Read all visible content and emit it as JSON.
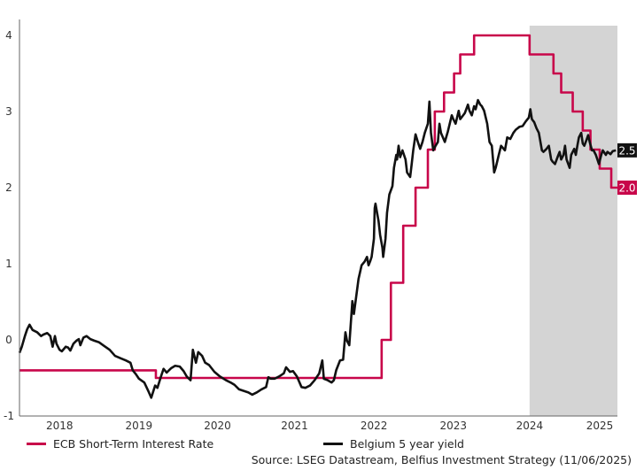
{
  "chart_data": {
    "type": "line",
    "title": "",
    "xlabel": "",
    "ylabel": "",
    "xlim": [
      2017.5,
      2025.26
    ],
    "ylim": [
      -1,
      4
    ],
    "x_ticks": [
      {
        "value": 2018.02,
        "label": "2018"
      },
      {
        "value": 2019.05,
        "label": "2019"
      },
      {
        "value": 2020.07,
        "label": "2020"
      },
      {
        "value": 2021.07,
        "label": "2021"
      },
      {
        "value": 2022.1,
        "label": "2022"
      },
      {
        "value": 2023.13,
        "label": "2023"
      },
      {
        "value": 2024.12,
        "label": "2024"
      },
      {
        "value": 2025.03,
        "label": "2025"
      }
    ],
    "y_ticks": [
      {
        "value": 4,
        "label": "4"
      },
      {
        "value": 3,
        "label": "3"
      },
      {
        "value": 2,
        "label": "2"
      },
      {
        "value": 1,
        "label": "1"
      },
      {
        "value": 0,
        "label": "0"
      },
      {
        "value": -1,
        "label": "-1"
      }
    ],
    "grid": false,
    "shaded_region": {
      "from": 2024.12,
      "to": 2025.26,
      "color": "#d4d4d4"
    },
    "legend_placement": "bottom",
    "series": [
      {
        "name": "ECB Short-Term Interest Rate",
        "color": "#c8064a",
        "step": true,
        "end_label": "2.0",
        "points": [
          [
            2017.5,
            -0.4
          ],
          [
            2019.27,
            -0.5
          ],
          [
            2022.2,
            0
          ],
          [
            2022.32,
            0.75
          ],
          [
            2022.48,
            1.5
          ],
          [
            2022.64,
            2.0
          ],
          [
            2022.8,
            2.5
          ],
          [
            2022.89,
            3.0
          ],
          [
            2023.01,
            3.25
          ],
          [
            2023.14,
            3.5
          ],
          [
            2023.22,
            3.75
          ],
          [
            2023.4,
            4.0
          ],
          [
            2024.12,
            3.75
          ],
          [
            2024.43,
            3.5
          ],
          [
            2024.53,
            3.25
          ],
          [
            2024.68,
            3.0
          ],
          [
            2024.81,
            2.75
          ],
          [
            2024.91,
            2.5
          ],
          [
            2025.03,
            2.25
          ],
          [
            2025.18,
            2.0
          ],
          [
            2025.26,
            2.0
          ]
        ]
      },
      {
        "name": "Belgium 5 year yield",
        "color": "#111111",
        "step": false,
        "end_label": "2.5",
        "points": [
          [
            2017.5,
            -0.17
          ],
          [
            2017.53,
            -0.09
          ],
          [
            2017.57,
            0.05
          ],
          [
            2017.6,
            0.14
          ],
          [
            2017.63,
            0.2
          ],
          [
            2017.67,
            0.13
          ],
          [
            2017.73,
            0.1
          ],
          [
            2017.78,
            0.05
          ],
          [
            2017.81,
            0.07
          ],
          [
            2017.86,
            0.09
          ],
          [
            2017.9,
            0.05
          ],
          [
            2017.93,
            -0.09
          ],
          [
            2017.96,
            0.05
          ],
          [
            2017.98,
            -0.05
          ],
          [
            2018.02,
            -0.13
          ],
          [
            2018.05,
            -0.15
          ],
          [
            2018.1,
            -0.09
          ],
          [
            2018.13,
            -0.1
          ],
          [
            2018.16,
            -0.14
          ],
          [
            2018.2,
            -0.05
          ],
          [
            2018.24,
            -0.01
          ],
          [
            2018.27,
            0.01
          ],
          [
            2018.29,
            -0.07
          ],
          [
            2018.33,
            0.03
          ],
          [
            2018.37,
            0.05
          ],
          [
            2018.42,
            0.01
          ],
          [
            2018.47,
            -0.01
          ],
          [
            2018.53,
            -0.03
          ],
          [
            2018.6,
            -0.08
          ],
          [
            2018.67,
            -0.13
          ],
          [
            2018.74,
            -0.21
          ],
          [
            2018.81,
            -0.24
          ],
          [
            2018.88,
            -0.27
          ],
          [
            2018.94,
            -0.3
          ],
          [
            2018.97,
            -0.4
          ],
          [
            2019.01,
            -0.45
          ],
          [
            2019.05,
            -0.51
          ],
          [
            2019.12,
            -0.56
          ],
          [
            2019.18,
            -0.69
          ],
          [
            2019.21,
            -0.76
          ],
          [
            2019.26,
            -0.6
          ],
          [
            2019.29,
            -0.63
          ],
          [
            2019.34,
            -0.47
          ],
          [
            2019.37,
            -0.38
          ],
          [
            2019.41,
            -0.43
          ],
          [
            2019.47,
            -0.37
          ],
          [
            2019.52,
            -0.34
          ],
          [
            2019.58,
            -0.35
          ],
          [
            2019.63,
            -0.41
          ],
          [
            2019.67,
            -0.48
          ],
          [
            2019.72,
            -0.53
          ],
          [
            2019.75,
            -0.13
          ],
          [
            2019.79,
            -0.3
          ],
          [
            2019.82,
            -0.16
          ],
          [
            2019.87,
            -0.21
          ],
          [
            2019.91,
            -0.3
          ],
          [
            2019.96,
            -0.33
          ],
          [
            2020.03,
            -0.42
          ],
          [
            2020.1,
            -0.48
          ],
          [
            2020.18,
            -0.53
          ],
          [
            2020.24,
            -0.56
          ],
          [
            2020.29,
            -0.59
          ],
          [
            2020.35,
            -0.65
          ],
          [
            2020.41,
            -0.67
          ],
          [
            2020.47,
            -0.69
          ],
          [
            2020.52,
            -0.72
          ],
          [
            2020.58,
            -0.69
          ],
          [
            2020.64,
            -0.65
          ],
          [
            2020.7,
            -0.62
          ],
          [
            2020.73,
            -0.49
          ],
          [
            2020.76,
            -0.51
          ],
          [
            2020.81,
            -0.51
          ],
          [
            2020.87,
            -0.48
          ],
          [
            2020.93,
            -0.44
          ],
          [
            2020.96,
            -0.36
          ],
          [
            2021.01,
            -0.42
          ],
          [
            2021.05,
            -0.41
          ],
          [
            2021.1,
            -0.48
          ],
          [
            2021.16,
            -0.62
          ],
          [
            2021.21,
            -0.63
          ],
          [
            2021.27,
            -0.6
          ],
          [
            2021.33,
            -0.53
          ],
          [
            2021.39,
            -0.44
          ],
          [
            2021.43,
            -0.27
          ],
          [
            2021.45,
            -0.51
          ],
          [
            2021.5,
            -0.53
          ],
          [
            2021.55,
            -0.56
          ],
          [
            2021.58,
            -0.53
          ],
          [
            2021.61,
            -0.4
          ],
          [
            2021.66,
            -0.27
          ],
          [
            2021.7,
            -0.26
          ],
          [
            2021.73,
            0.1
          ],
          [
            2021.75,
            -0.01
          ],
          [
            2021.78,
            -0.07
          ],
          [
            2021.82,
            0.51
          ],
          [
            2021.84,
            0.34
          ],
          [
            2021.87,
            0.57
          ],
          [
            2021.9,
            0.8
          ],
          [
            2021.94,
            0.98
          ],
          [
            2021.98,
            1.03
          ],
          [
            2022.01,
            1.09
          ],
          [
            2022.03,
            0.98
          ],
          [
            2022.05,
            1.03
          ],
          [
            2022.07,
            1.09
          ],
          [
            2022.1,
            1.33
          ],
          [
            2022.11,
            1.73
          ],
          [
            2022.12,
            1.79
          ],
          [
            2022.16,
            1.56
          ],
          [
            2022.18,
            1.38
          ],
          [
            2022.21,
            1.21
          ],
          [
            2022.22,
            1.09
          ],
          [
            2022.25,
            1.33
          ],
          [
            2022.27,
            1.67
          ],
          [
            2022.3,
            1.91
          ],
          [
            2022.34,
            2.02
          ],
          [
            2022.36,
            2.26
          ],
          [
            2022.39,
            2.43
          ],
          [
            2022.4,
            2.37
          ],
          [
            2022.42,
            2.55
          ],
          [
            2022.44,
            2.4
          ],
          [
            2022.47,
            2.49
          ],
          [
            2022.49,
            2.43
          ],
          [
            2022.51,
            2.37
          ],
          [
            2022.53,
            2.2
          ],
          [
            2022.57,
            2.14
          ],
          [
            2022.59,
            2.31
          ],
          [
            2022.61,
            2.49
          ],
          [
            2022.64,
            2.7
          ],
          [
            2022.67,
            2.6
          ],
          [
            2022.7,
            2.51
          ],
          [
            2022.73,
            2.6
          ],
          [
            2022.76,
            2.72
          ],
          [
            2022.8,
            2.84
          ],
          [
            2022.82,
            3.13
          ],
          [
            2022.84,
            2.72
          ],
          [
            2022.87,
            2.49
          ],
          [
            2022.9,
            2.55
          ],
          [
            2022.93,
            2.6
          ],
          [
            2022.95,
            2.84
          ],
          [
            2022.97,
            2.72
          ],
          [
            2023.02,
            2.6
          ],
          [
            2023.06,
            2.74
          ],
          [
            2023.11,
            2.95
          ],
          [
            2023.13,
            2.9
          ],
          [
            2023.16,
            2.84
          ],
          [
            2023.2,
            3.01
          ],
          [
            2023.22,
            2.9
          ],
          [
            2023.28,
            2.98
          ],
          [
            2023.32,
            3.09
          ],
          [
            2023.34,
            3.01
          ],
          [
            2023.37,
            2.95
          ],
          [
            2023.4,
            3.07
          ],
          [
            2023.42,
            3.03
          ],
          [
            2023.45,
            3.15
          ],
          [
            2023.48,
            3.09
          ],
          [
            2023.5,
            3.07
          ],
          [
            2023.53,
            3.01
          ],
          [
            2023.57,
            2.84
          ],
          [
            2023.6,
            2.6
          ],
          [
            2023.63,
            2.55
          ],
          [
            2023.66,
            2.2
          ],
          [
            2023.68,
            2.26
          ],
          [
            2023.72,
            2.43
          ],
          [
            2023.75,
            2.55
          ],
          [
            2023.8,
            2.49
          ],
          [
            2023.83,
            2.66
          ],
          [
            2023.87,
            2.64
          ],
          [
            2023.91,
            2.72
          ],
          [
            2023.94,
            2.76
          ],
          [
            2023.99,
            2.8
          ],
          [
            2024.03,
            2.81
          ],
          [
            2024.07,
            2.87
          ],
          [
            2024.11,
            2.92
          ],
          [
            2024.13,
            3.03
          ],
          [
            2024.15,
            2.9
          ],
          [
            2024.18,
            2.86
          ],
          [
            2024.21,
            2.78
          ],
          [
            2024.24,
            2.72
          ],
          [
            2024.28,
            2.49
          ],
          [
            2024.3,
            2.47
          ],
          [
            2024.34,
            2.51
          ],
          [
            2024.37,
            2.55
          ],
          [
            2024.4,
            2.37
          ],
          [
            2024.42,
            2.34
          ],
          [
            2024.45,
            2.31
          ],
          [
            2024.49,
            2.42
          ],
          [
            2024.51,
            2.47
          ],
          [
            2024.53,
            2.37
          ],
          [
            2024.56,
            2.43
          ],
          [
            2024.58,
            2.55
          ],
          [
            2024.6,
            2.37
          ],
          [
            2024.64,
            2.26
          ],
          [
            2024.66,
            2.43
          ],
          [
            2024.7,
            2.51
          ],
          [
            2024.72,
            2.43
          ],
          [
            2024.74,
            2.55
          ],
          [
            2024.76,
            2.66
          ],
          [
            2024.79,
            2.72
          ],
          [
            2024.81,
            2.58
          ],
          [
            2024.83,
            2.55
          ],
          [
            2024.86,
            2.63
          ],
          [
            2024.88,
            2.69
          ],
          [
            2024.9,
            2.6
          ],
          [
            2024.93,
            2.49
          ],
          [
            2024.95,
            2.49
          ],
          [
            2024.98,
            2.43
          ],
          [
            2025.02,
            2.31
          ],
          [
            2025.05,
            2.43
          ],
          [
            2025.07,
            2.49
          ],
          [
            2025.11,
            2.43
          ],
          [
            2025.13,
            2.47
          ],
          [
            2025.17,
            2.44
          ],
          [
            2025.2,
            2.48
          ],
          [
            2025.24,
            2.49
          ]
        ]
      }
    ]
  },
  "legend": {
    "ecb_label": "ECB Short-Term Interest Rate",
    "belgium_label": "Belgium 5 year yield"
  },
  "source": "Source: LSEG Datastream, Belfius Investment Strategy (11/06/2025)"
}
